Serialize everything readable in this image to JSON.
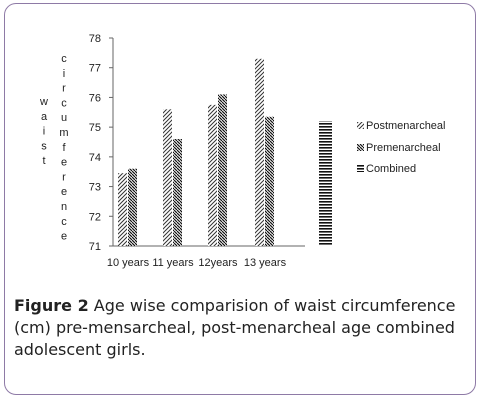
{
  "chart_data": {
    "type": "bar",
    "ylabel": "waist circumference",
    "ylabel_columns": [
      [
        "w",
        "a",
        "i",
        "s",
        "t"
      ],
      [
        "c",
        "i",
        "r",
        "c",
        "u",
        "m",
        "f",
        "e",
        "r",
        "e",
        "n",
        "c",
        "e"
      ]
    ],
    "categories": [
      "10 years",
      "11 years",
      "12years",
      "13 years",
      ""
    ],
    "ylim": [
      71,
      78
    ],
    "yticks": [
      "71",
      "72",
      "73",
      "74",
      "75",
      "76",
      "77",
      "78"
    ],
    "series": [
      {
        "name": "Postmenarcheal",
        "values": [
          73.45,
          75.6,
          75.75,
          77.3,
          null
        ]
      },
      {
        "name": "Premenarcheal",
        "values": [
          73.6,
          74.6,
          76.1,
          75.35,
          null
        ]
      },
      {
        "name": "Combined",
        "values": [
          null,
          null,
          null,
          null,
          75.2
        ]
      }
    ],
    "legend_position": "right",
    "grid": false
  },
  "caption": {
    "label": "Figure 2",
    "text": "Age wise comparision of waist circumference (cm) pre-mensarcheal, post-menarcheal age combined adolescent girls."
  }
}
